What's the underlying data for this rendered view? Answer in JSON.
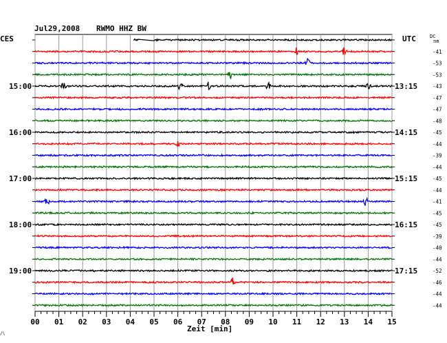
{
  "header": {
    "date": "Jul29,2008",
    "station": "RWMO HHZ BW",
    "left_label": "CES",
    "right_label": "UTC",
    "dc_label_top": "DC",
    "dc_label_bottom": "nm"
  },
  "footer": {
    "xlabel": "Zeit [min]",
    "corner_mark": "/\\"
  },
  "chart_data": {
    "type": "line",
    "title": "Jul29,2008 RWMO HHZ BW",
    "xlabel": "Zeit [min]",
    "ylabel": "",
    "xlim": [
      0,
      15
    ],
    "x_ticks": [
      "00",
      "01",
      "02",
      "03",
      "04",
      "05",
      "06",
      "07",
      "08",
      "09",
      "10",
      "11",
      "12",
      "13",
      "14",
      "15"
    ],
    "grid": true,
    "trace_colors": [
      "#000000",
      "#ff0000",
      "#0000ff",
      "#007700"
    ],
    "left_time_labels": [
      {
        "row": 4,
        "label": "15:00"
      },
      {
        "row": 8,
        "label": "16:00"
      },
      {
        "row": 12,
        "label": "17:00"
      },
      {
        "row": 16,
        "label": "18:00"
      },
      {
        "row": 20,
        "label": "19:00"
      }
    ],
    "right_time_labels": [
      {
        "row": 0,
        "label": "UTC"
      },
      {
        "row": 4,
        "label": "13:15"
      },
      {
        "row": 8,
        "label": "14:15"
      },
      {
        "row": 12,
        "label": "15:15"
      },
      {
        "row": 16,
        "label": "16:15"
      },
      {
        "row": 20,
        "label": "17:15"
      }
    ],
    "dc_offsets": [
      "-41",
      "-53",
      "-53",
      "-43",
      "-47",
      "-47",
      "-48",
      "-45",
      "-44",
      "-39",
      "-44",
      "-45",
      "-44",
      "-41",
      "-45",
      "-45",
      "-39",
      "-40",
      "-44",
      "-52",
      "-46",
      "-44",
      "-44"
    ],
    "traces": [
      {
        "row": 0,
        "start_min": 4.15,
        "gap_end_min": 5.0
      },
      {
        "row": 1,
        "events": [
          11.0,
          13.0
        ]
      },
      {
        "row": 2,
        "events": [
          11.45
        ]
      },
      {
        "row": 3,
        "events": [
          8.2
        ]
      },
      {
        "row": 4,
        "events": [
          1.2,
          6.1,
          7.3,
          9.8,
          14.0
        ]
      },
      {
        "row": 5,
        "events": []
      },
      {
        "row": 6,
        "events": []
      },
      {
        "row": 7,
        "events": []
      },
      {
        "row": 8,
        "events": []
      },
      {
        "row": 9,
        "events": [
          6.0
        ]
      },
      {
        "row": 10,
        "events": []
      },
      {
        "row": 11,
        "events": []
      },
      {
        "row": 12,
        "events": []
      },
      {
        "row": 13,
        "events": []
      },
      {
        "row": 14,
        "events": [
          0.5,
          13.9
        ]
      },
      {
        "row": 15,
        "events": []
      },
      {
        "row": 16,
        "events": []
      },
      {
        "row": 17,
        "events": []
      },
      {
        "row": 18,
        "events": []
      },
      {
        "row": 19,
        "events": []
      },
      {
        "row": 20,
        "events": []
      },
      {
        "row": 21,
        "events": [
          8.3
        ]
      },
      {
        "row": 22,
        "events": []
      },
      {
        "row": 23,
        "events": []
      }
    ]
  }
}
